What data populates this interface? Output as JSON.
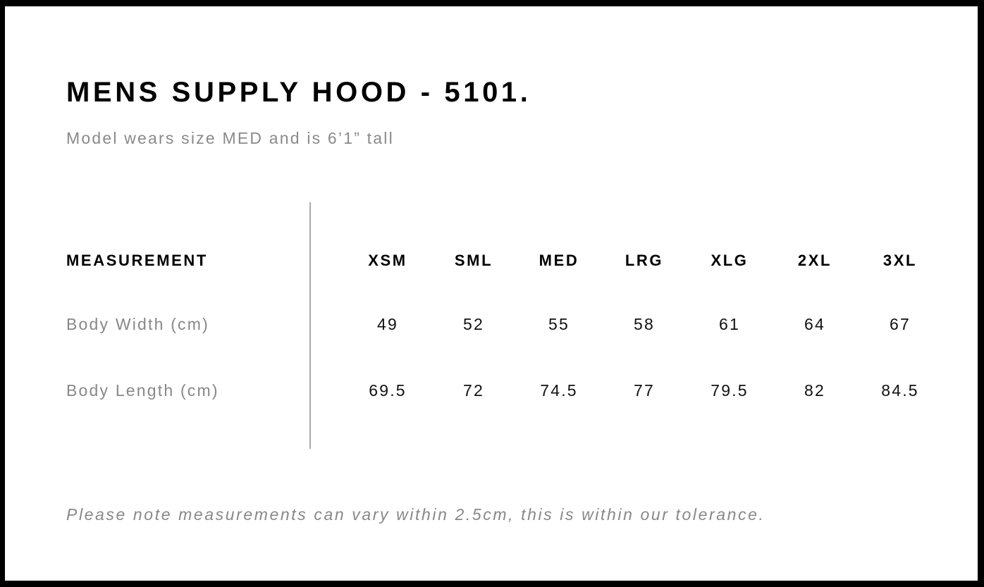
{
  "title": "MENS SUPPLY HOOD - 5101.",
  "subtitle": "Model wears size MED and is 6’1” tall",
  "table": {
    "header_label": "MEASUREMENT",
    "sizes": [
      "XSM",
      "SML",
      "MED",
      "LRG",
      "XLG",
      "2XL",
      "3XL"
    ],
    "rows": [
      {
        "label": "Body Width (cm)",
        "values": [
          "49",
          "52",
          "55",
          "58",
          "61",
          "64",
          "67"
        ]
      },
      {
        "label": "Body Length (cm)",
        "values": [
          "69.5",
          "72",
          "74.5",
          "77",
          "79.5",
          "82",
          "84.5"
        ]
      }
    ]
  },
  "note": "Please note measurements can vary within 2.5cm, this is within our tolerance."
}
